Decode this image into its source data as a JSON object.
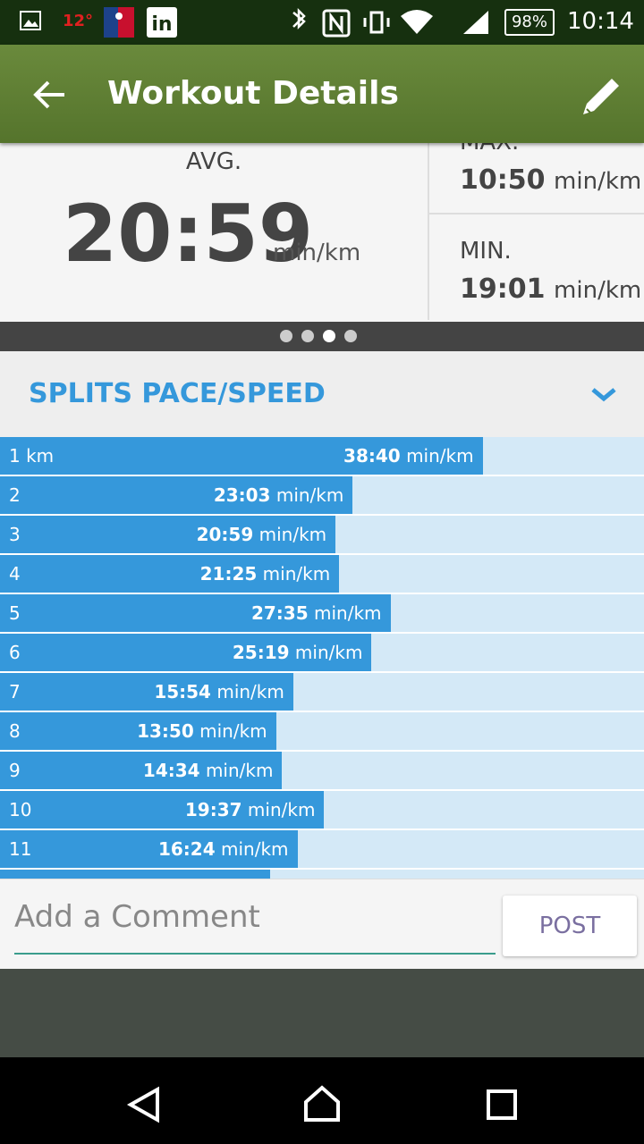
{
  "status_bar": {
    "temperature": "12°",
    "battery": "98%",
    "time": "10:14"
  },
  "toolbar": {
    "title": "Workout Details"
  },
  "stats": {
    "avg": {
      "label": "AVG.",
      "value": "20:59",
      "unit": "min/km"
    },
    "max": {
      "label": "MAX.",
      "value": "10:50",
      "unit": "min/km"
    },
    "min": {
      "label": "MIN.",
      "value": "19:01",
      "unit": "min/km"
    }
  },
  "splits": {
    "title": "SPLITS PACE/SPEED",
    "rows": [
      {
        "label": "1 km",
        "pace": "38:40",
        "unit": "min/km"
      },
      {
        "label": "2",
        "pace": "23:03",
        "unit": "min/km"
      },
      {
        "label": "3",
        "pace": "20:59",
        "unit": "min/km"
      },
      {
        "label": "4",
        "pace": "21:25",
        "unit": "min/km"
      },
      {
        "label": "5",
        "pace": "27:35",
        "unit": "min/km"
      },
      {
        "label": "6",
        "pace": "25:19",
        "unit": "min/km"
      },
      {
        "label": "7",
        "pace": "15:54",
        "unit": "min/km"
      },
      {
        "label": "8",
        "pace": "13:50",
        "unit": "min/km"
      },
      {
        "label": "9",
        "pace": "14:34",
        "unit": "min/km"
      },
      {
        "label": "10",
        "pace": "19:37",
        "unit": "min/km"
      },
      {
        "label": "11",
        "pace": "16:24",
        "unit": "min/km"
      }
    ]
  },
  "comment": {
    "placeholder": "Add a Comment",
    "button": "POST"
  }
}
